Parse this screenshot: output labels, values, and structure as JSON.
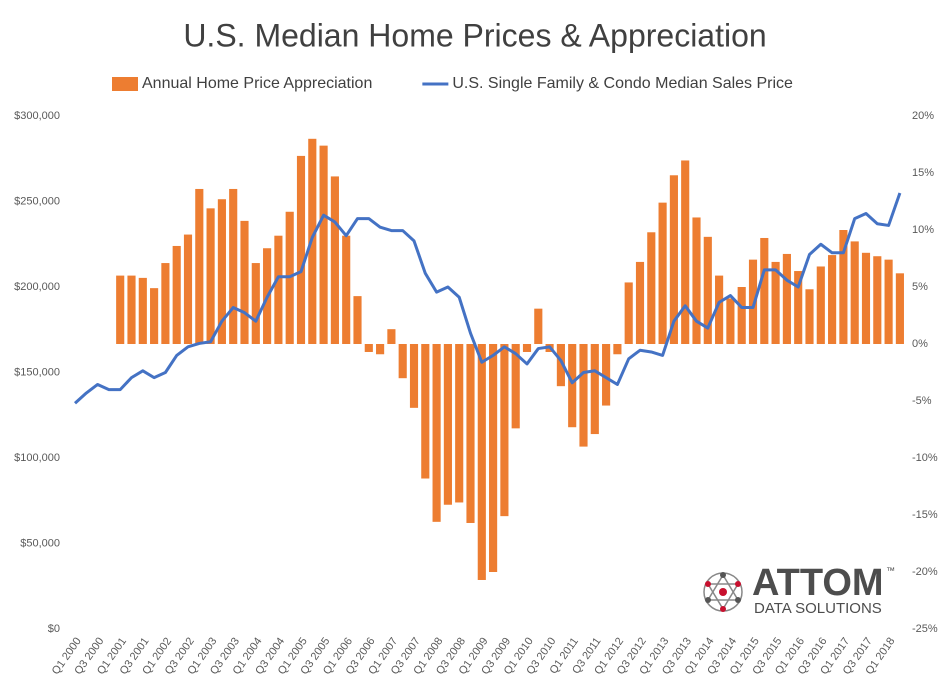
{
  "chart_data": {
    "type": "combo",
    "title": "U.S. Median Home Prices & Appreciation",
    "categories": [
      "Q1 2000",
      null,
      "Q3 2000",
      null,
      "Q1 2001",
      null,
      "Q3 2001",
      null,
      "Q1 2002",
      null,
      "Q3 2002",
      null,
      "Q1 2003",
      null,
      "Q3 2003",
      null,
      "Q1 2004",
      null,
      "Q3 2004",
      null,
      "Q1 2005",
      null,
      "Q3 2005",
      null,
      "Q1 2006",
      null,
      "Q3 2006",
      null,
      "Q1 2007",
      null,
      "Q3 2007",
      null,
      "Q1 2008",
      null,
      "Q3 2008",
      null,
      "Q1 2009",
      null,
      "Q3 2009",
      null,
      "Q1 2010",
      null,
      "Q3 2010",
      null,
      "Q1 2011",
      null,
      "Q3 2011",
      null,
      "Q1 2012",
      null,
      "Q3 2012",
      null,
      "Q1 2013",
      null,
      "Q3 2013",
      null,
      "Q1 2014",
      null,
      "Q3 2014",
      null,
      "Q1 2015",
      null,
      "Q3 2015",
      null,
      "Q1 2016",
      null,
      "Q3 2016",
      null,
      "Q1 2017",
      null,
      "Q3 2017",
      null,
      "Q1 2018",
      null
    ],
    "series": [
      {
        "name": "Annual Home Price Appreciation",
        "type": "bar",
        "axis": "y2",
        "color": "#ed7d31",
        "values": [
          null,
          null,
          null,
          null,
          6.0,
          6.0,
          5.8,
          4.9,
          7.1,
          8.6,
          9.6,
          13.6,
          11.9,
          12.7,
          13.6,
          10.8,
          7.1,
          8.4,
          9.5,
          11.6,
          16.5,
          18.0,
          17.4,
          14.7,
          9.5,
          4.2,
          -0.7,
          -0.9,
          1.3,
          -3.0,
          -5.6,
          -11.8,
          -15.6,
          -14.1,
          -13.9,
          -15.7,
          -20.7,
          -20.0,
          -15.1,
          -7.4,
          -0.7,
          3.1,
          -0.7,
          -3.7,
          -7.3,
          -9.0,
          -7.9,
          -5.4,
          -0.9,
          5.4,
          7.2,
          9.8,
          12.4,
          14.8,
          16.1,
          11.1,
          9.4,
          6.0,
          4.0,
          5.0,
          7.4,
          9.3,
          7.2,
          7.9,
          6.4,
          4.8,
          6.8,
          7.8,
          10.0,
          9.0,
          8.0,
          7.7,
          7.4,
          6.2
        ]
      },
      {
        "name": "U.S. Single Family & Condo Median Sales Price",
        "type": "line",
        "color": "#4472c4",
        "values": [
          132000,
          138000,
          143000,
          140000,
          140000,
          147000,
          151000,
          147000,
          150000,
          160000,
          165000,
          167000,
          168000,
          180000,
          188000,
          185000,
          180000,
          194000,
          206000,
          206000,
          209000,
          229000,
          242000,
          238000,
          230000,
          240000,
          240000,
          235000,
          233000,
          233000,
          227000,
          208000,
          197000,
          200000,
          194000,
          173000,
          156000,
          160000,
          165000,
          161000,
          155000,
          164000,
          165000,
          157000,
          144000,
          150000,
          151000,
          147000,
          143000,
          158000,
          163000,
          162000,
          160000,
          180000,
          189000,
          180000,
          176000,
          191000,
          195000,
          188000,
          188000,
          210000,
          210000,
          204000,
          200000,
          219000,
          225000,
          220000,
          220000,
          240000,
          243000,
          237000,
          236000,
          255000
        ]
      }
    ],
    "ylim": [
      0,
      300000
    ],
    "yticks": [
      {
        "value": 0,
        "label": "$0"
      },
      {
        "value": 50000,
        "label": "$50,000"
      },
      {
        "value": 100000,
        "label": "$100,000"
      },
      {
        "value": 150000,
        "label": "$150,000"
      },
      {
        "value": 200000,
        "label": "$200,000"
      },
      {
        "value": 250000,
        "label": "$250,000"
      },
      {
        "value": 300000,
        "label": "$300,000"
      }
    ],
    "y2lim": [
      -25,
      20
    ],
    "y2ticks": [
      {
        "value": -25,
        "label": "-25%"
      },
      {
        "value": -20,
        "label": "-20%"
      },
      {
        "value": -15,
        "label": "-15%"
      },
      {
        "value": -10,
        "label": "-10%"
      },
      {
        "value": -5,
        "label": "-5%"
      },
      {
        "value": 0,
        "label": "0%"
      },
      {
        "value": 5,
        "label": "5%"
      },
      {
        "value": 10,
        "label": "10%"
      },
      {
        "value": 15,
        "label": "15%"
      },
      {
        "value": 20,
        "label": "20%"
      }
    ],
    "grid": false,
    "legend": "top",
    "logo_text": "ATTOM",
    "logo_mark": "™",
    "logo_subtext": "DATA SOLUTIONS"
  }
}
